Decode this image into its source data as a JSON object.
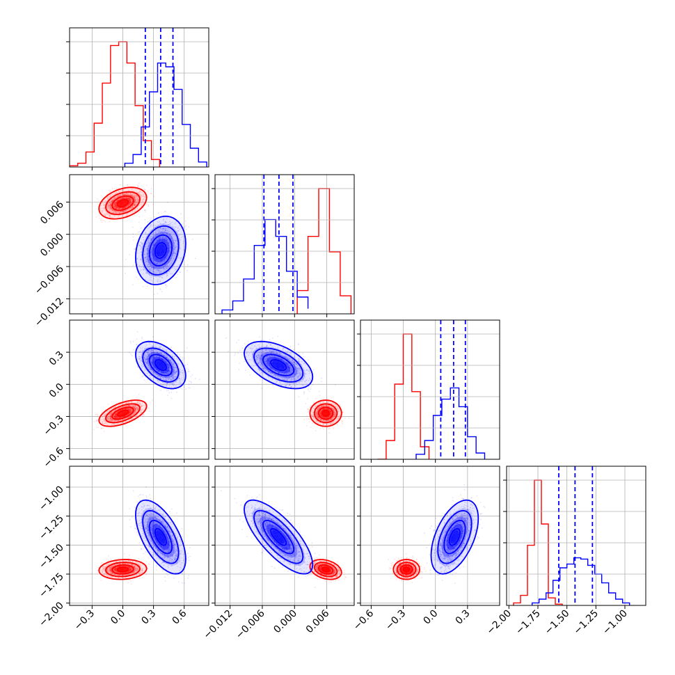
{
  "colors": {
    "red": "#ff0000",
    "blue": "#0000ff",
    "grid": "#b0b0b0",
    "axis": "#000000"
  },
  "chart_data": {
    "type": "corner",
    "grid": true,
    "parameters": [
      {
        "range": [
          -0.52,
          0.84
        ],
        "ticks": [
          -0.3,
          0.0,
          0.3,
          0.6
        ],
        "tick_labels": [
          "−0.3",
          "0.0",
          "0.3",
          "0.6"
        ]
      },
      {
        "range": [
          -0.0148,
          0.0111
        ],
        "ticks": [
          -0.012,
          -0.006,
          0.0,
          0.006
        ],
        "tick_labels": [
          "−0.012",
          "−0.006",
          "0.000",
          "0.006"
        ]
      },
      {
        "range": [
          -0.7,
          0.6
        ],
        "ticks": [
          -0.6,
          -0.3,
          0.0,
          0.3
        ],
        "tick_labels": [
          "−0.6",
          "−0.3",
          "0.0",
          "0.3"
        ]
      },
      {
        "range": [
          -2.02,
          -0.82
        ],
        "ticks": [
          -2.0,
          -1.75,
          -1.5,
          -1.25,
          -1.0
        ],
        "tick_labels": [
          "−2.00",
          "−1.75",
          "−1.50",
          "−1.25",
          "−1.00"
        ]
      }
    ],
    "series": [
      {
        "color": "red",
        "means": [
          0.0,
          0.0058,
          -0.27,
          -1.71
        ],
        "sds": [
          0.095,
          0.0012,
          0.05,
          0.035
        ],
        "correlations": [
          [
            0,
            1,
            0.35
          ],
          [
            0,
            2,
            0.55
          ],
          [
            0,
            3,
            0.1
          ],
          [
            1,
            2,
            0.0
          ],
          [
            1,
            3,
            -0.3
          ],
          [
            2,
            3,
            0.0
          ]
        ]
      },
      {
        "color": "blue",
        "means": [
          0.37,
          -0.003,
          0.18,
          -1.43
        ],
        "sds": [
          0.1,
          0.0026,
          0.09,
          0.13
        ],
        "correlations": [
          [
            0,
            1,
            0.2
          ],
          [
            0,
            2,
            -0.45
          ],
          [
            0,
            3,
            -0.6
          ],
          [
            1,
            2,
            -0.5
          ],
          [
            1,
            3,
            -0.75
          ],
          [
            2,
            3,
            0.5
          ]
        ]
      }
    ],
    "histograms": [
      {
        "red": {
          "edges": [
            -0.52,
            -0.44,
            -0.36,
            -0.28,
            -0.2,
            -0.12,
            -0.04,
            0.04,
            0.12,
            0.2,
            0.28,
            0.36
          ],
          "counts": [
            1,
            3,
            12,
            35,
            67,
            97,
            100,
            83,
            49,
            21,
            6
          ]
        },
        "blue": {
          "edges": [
            0.02,
            0.1,
            0.18,
            0.26,
            0.34,
            0.42,
            0.5,
            0.58,
            0.66,
            0.74,
            0.82
          ],
          "counts": [
            3,
            10,
            32,
            60,
            83,
            80,
            62,
            34,
            15,
            4
          ]
        }
      },
      {
        "red": {
          "edges": [
            0.0005,
            0.0025,
            0.0045,
            0.0065,
            0.0085,
            0.0105
          ],
          "counts": [
            18,
            60,
            97,
            48,
            14
          ]
        },
        "blue": {
          "edges": [
            -0.0135,
            -0.0115,
            -0.0095,
            -0.0075,
            -0.0055,
            -0.0035,
            -0.0015,
            0.0005,
            0.0025
          ],
          "counts": [
            3,
            10,
            27,
            53,
            73,
            60,
            33,
            13,
            4
          ]
        }
      },
      {
        "red": {
          "edges": [
            -0.54,
            -0.46,
            -0.38,
            -0.3,
            -0.22,
            -0.14,
            -0.06
          ],
          "counts": [
            0,
            15,
            60,
            100,
            54,
            10
          ]
        },
        "blue": {
          "edges": [
            -0.18,
            -0.1,
            -0.02,
            0.06,
            0.14,
            0.22,
            0.3,
            0.38,
            0.46
          ],
          "counts": [
            4,
            15,
            35,
            48,
            57,
            42,
            18,
            5
          ]
        }
      },
      {
        "red": {
          "edges": [
            -1.96,
            -1.9,
            -1.84,
            -1.78,
            -1.72,
            -1.66,
            -1.6,
            -1.54
          ],
          "counts": [
            2,
            8,
            48,
            100,
            65,
            6,
            1
          ]
        },
        "blue": {
          "edges": [
            -1.8,
            -1.74,
            -1.68,
            -1.62,
            -1.56,
            -1.5,
            -1.44,
            -1.38,
            -1.32,
            -1.26,
            -1.2,
            -1.14,
            -1.08,
            -1.02,
            -0.96
          ],
          "counts": [
            2,
            5,
            10,
            20,
            30,
            33,
            38,
            37,
            32,
            25,
            18,
            10,
            5,
            2
          ]
        }
      }
    ],
    "quantile_lines": [
      [
        0.22,
        0.37,
        0.49
      ],
      [
        -0.0057,
        -0.0029,
        -0.0003
      ],
      [
        0.05,
        0.17,
        0.28
      ],
      [
        -1.57,
        -1.43,
        -1.28
      ]
    ]
  }
}
